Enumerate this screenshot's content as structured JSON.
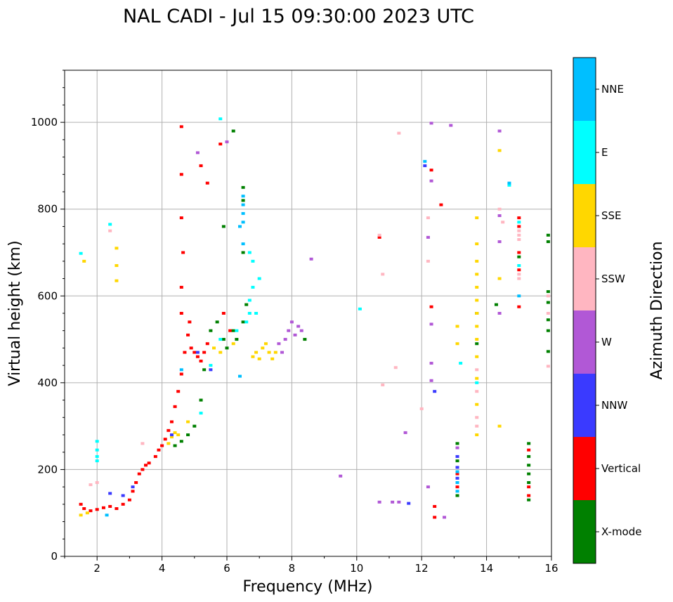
{
  "chart_data": {
    "type": "scatter",
    "title": "NAL CADI - Jul 15 09:30:00 2023 UTC",
    "xlabel": "Frequency (MHz)",
    "ylabel": "Virtual height (km)",
    "xlim": [
      1,
      16
    ],
    "ylim": [
      0,
      1120
    ],
    "xticks": [
      2,
      4,
      6,
      8,
      10,
      12,
      14,
      16
    ],
    "yticks": [
      0,
      200,
      400,
      600,
      800,
      1000
    ],
    "grid": true,
    "colorbar": {
      "label": "Azimuth Direction",
      "categories": [
        {
          "name": "X-mode",
          "color": "#008000"
        },
        {
          "name": "Vertical",
          "color": "#ff0000"
        },
        {
          "name": "NNW",
          "color": "#3a3aff"
        },
        {
          "name": "W",
          "color": "#b158d6"
        },
        {
          "name": "SSW",
          "color": "#ffb6c1"
        },
        {
          "name": "SSE",
          "color": "#ffd700"
        },
        {
          "name": "E",
          "color": "#00ffff"
        },
        {
          "name": "NNE",
          "color": "#00bfff"
        }
      ]
    },
    "series": [
      {
        "name": "Vertical",
        "points": [
          [
            1.5,
            120
          ],
          [
            1.6,
            110
          ],
          [
            1.8,
            105
          ],
          [
            2.0,
            108
          ],
          [
            2.2,
            112
          ],
          [
            2.4,
            115
          ],
          [
            2.6,
            110
          ],
          [
            2.8,
            120
          ],
          [
            3.0,
            130
          ],
          [
            3.1,
            150
          ],
          [
            3.2,
            170
          ],
          [
            3.3,
            190
          ],
          [
            3.4,
            200
          ],
          [
            3.5,
            210
          ],
          [
            3.6,
            215
          ],
          [
            3.8,
            230
          ],
          [
            3.9,
            245
          ],
          [
            4.0,
            255
          ],
          [
            4.1,
            270
          ],
          [
            4.2,
            290
          ],
          [
            4.3,
            310
          ],
          [
            4.4,
            345
          ],
          [
            4.5,
            380
          ],
          [
            4.6,
            420
          ],
          [
            4.7,
            470
          ],
          [
            4.8,
            510
          ],
          [
            4.85,
            540
          ],
          [
            4.9,
            480
          ],
          [
            5.0,
            470
          ],
          [
            5.1,
            460
          ],
          [
            5.2,
            450
          ],
          [
            5.3,
            470
          ],
          [
            5.4,
            490
          ],
          [
            4.6,
            560
          ],
          [
            4.6,
            620
          ],
          [
            4.65,
            700
          ],
          [
            4.6,
            780
          ],
          [
            4.6,
            880
          ],
          [
            4.6,
            990
          ],
          [
            5.8,
            950
          ],
          [
            5.2,
            900
          ],
          [
            5.4,
            860
          ],
          [
            6.1,
            520
          ],
          [
            5.9,
            560
          ],
          [
            12.3,
            890
          ],
          [
            12.6,
            810
          ],
          [
            10.7,
            735
          ],
          [
            12.3,
            575
          ],
          [
            12.4,
            115
          ],
          [
            12.4,
            90
          ],
          [
            13.1,
            190
          ],
          [
            13.1,
            160
          ],
          [
            15.0,
            780
          ],
          [
            15.0,
            760
          ],
          [
            15.0,
            700
          ],
          [
            15.0,
            660
          ],
          [
            15.0,
            575
          ],
          [
            15.3,
            245
          ],
          [
            15.3,
            160
          ],
          [
            15.3,
            140
          ]
        ]
      },
      {
        "name": "X-mode",
        "points": [
          [
            4.4,
            255
          ],
          [
            4.6,
            265
          ],
          [
            4.8,
            280
          ],
          [
            5.0,
            300
          ],
          [
            5.2,
            360
          ],
          [
            5.3,
            430
          ],
          [
            5.5,
            520
          ],
          [
            5.7,
            540
          ],
          [
            5.9,
            500
          ],
          [
            6.0,
            480
          ],
          [
            6.2,
            520
          ],
          [
            6.3,
            500
          ],
          [
            6.5,
            540
          ],
          [
            6.6,
            580
          ],
          [
            6.5,
            700
          ],
          [
            6.5,
            820
          ],
          [
            6.5,
            850
          ],
          [
            6.2,
            980
          ],
          [
            5.9,
            760
          ],
          [
            8.4,
            500
          ],
          [
            13.1,
            260
          ],
          [
            13.1,
            220
          ],
          [
            13.1,
            140
          ],
          [
            15.3,
            260
          ],
          [
            15.3,
            230
          ],
          [
            15.3,
            210
          ],
          [
            15.3,
            190
          ],
          [
            15.3,
            170
          ],
          [
            15.3,
            130
          ],
          [
            15.9,
            740
          ],
          [
            15.9,
            725
          ],
          [
            15.9,
            610
          ],
          [
            15.9,
            585
          ],
          [
            15.9,
            545
          ],
          [
            15.9,
            520
          ],
          [
            15.9,
            472
          ],
          [
            13.7,
            560
          ],
          [
            13.7,
            490
          ],
          [
            14.3,
            580
          ],
          [
            15.0,
            690
          ]
        ]
      },
      {
        "name": "SSE",
        "points": [
          [
            1.5,
            95
          ],
          [
            1.7,
            100
          ],
          [
            1.6,
            680
          ],
          [
            2.6,
            710
          ],
          [
            2.6,
            670
          ],
          [
            2.6,
            635
          ],
          [
            4.2,
            260
          ],
          [
            4.3,
            275
          ],
          [
            4.4,
            285
          ],
          [
            4.5,
            280
          ],
          [
            4.8,
            310
          ],
          [
            5.6,
            480
          ],
          [
            5.8,
            470
          ],
          [
            6.2,
            490
          ],
          [
            6.8,
            460
          ],
          [
            6.9,
            470
          ],
          [
            7.0,
            455
          ],
          [
            7.1,
            480
          ],
          [
            7.2,
            490
          ],
          [
            7.3,
            470
          ],
          [
            7.4,
            455
          ],
          [
            7.5,
            470
          ],
          [
            13.7,
            780
          ],
          [
            13.7,
            720
          ],
          [
            13.7,
            680
          ],
          [
            13.7,
            650
          ],
          [
            13.7,
            620
          ],
          [
            13.7,
            590
          ],
          [
            13.7,
            560
          ],
          [
            13.7,
            530
          ],
          [
            13.7,
            500
          ],
          [
            13.7,
            460
          ],
          [
            13.7,
            410
          ],
          [
            13.7,
            350
          ],
          [
            13.7,
            280
          ],
          [
            14.4,
            935
          ],
          [
            14.4,
            640
          ],
          [
            14.4,
            300
          ],
          [
            13.1,
            530
          ],
          [
            13.1,
            490
          ]
        ]
      },
      {
        "name": "W",
        "points": [
          [
            7.6,
            490
          ],
          [
            7.8,
            500
          ],
          [
            7.9,
            520
          ],
          [
            8.0,
            540
          ],
          [
            8.1,
            510
          ],
          [
            8.2,
            530
          ],
          [
            8.3,
            520
          ],
          [
            7.7,
            470
          ],
          [
            8.6,
            685
          ],
          [
            9.5,
            185
          ],
          [
            10.7,
            125
          ],
          [
            11.1,
            125
          ],
          [
            11.3,
            125
          ],
          [
            11.5,
            285
          ],
          [
            12.2,
            735
          ],
          [
            12.3,
            535
          ],
          [
            12.3,
            445
          ],
          [
            12.3,
            405
          ],
          [
            12.2,
            160
          ],
          [
            12.7,
            90
          ],
          [
            12.3,
            998
          ],
          [
            12.3,
            865
          ],
          [
            12.9,
            993
          ],
          [
            14.4,
            980
          ],
          [
            14.4,
            785
          ],
          [
            14.4,
            725
          ],
          [
            14.4,
            560
          ],
          [
            13.1,
            250
          ],
          [
            5.1,
            930
          ],
          [
            6.0,
            955
          ]
        ]
      },
      {
        "name": "SSW",
        "points": [
          [
            1.8,
            165
          ],
          [
            2.4,
            750
          ],
          [
            2.0,
            170
          ],
          [
            3.4,
            260
          ],
          [
            11.3,
            975
          ],
          [
            10.7,
            740
          ],
          [
            10.8,
            650
          ],
          [
            10.8,
            395
          ],
          [
            11.2,
            435
          ],
          [
            12.2,
            780
          ],
          [
            12.2,
            680
          ],
          [
            12.0,
            340
          ],
          [
            14.4,
            800
          ],
          [
            14.5,
            770
          ],
          [
            15.0,
            750
          ],
          [
            15.0,
            740
          ],
          [
            15.0,
            730
          ],
          [
            15.0,
            650
          ],
          [
            15.0,
            640
          ],
          [
            15.9,
            600
          ],
          [
            15.9,
            560
          ],
          [
            15.9,
            438
          ],
          [
            13.7,
            320
          ],
          [
            13.7,
            300
          ],
          [
            13.7,
            380
          ],
          [
            13.7,
            430
          ]
        ]
      },
      {
        "name": "NNW",
        "points": [
          [
            2.4,
            145
          ],
          [
            2.8,
            140
          ],
          [
            3.1,
            160
          ],
          [
            4.3,
            280
          ],
          [
            5.1,
            470
          ],
          [
            12.1,
            900
          ],
          [
            12.4,
            380
          ],
          [
            11.6,
            122
          ],
          [
            13.1,
            180
          ],
          [
            13.1,
            205
          ],
          [
            13.1,
            230
          ],
          [
            5.5,
            430
          ]
        ]
      },
      {
        "name": "E",
        "points": [
          [
            2.4,
            765
          ],
          [
            2.0,
            265
          ],
          [
            2.0,
            245
          ],
          [
            2.0,
            230
          ],
          [
            2.0,
            220
          ],
          [
            5.2,
            330
          ],
          [
            5.5,
            440
          ],
          [
            5.8,
            500
          ],
          [
            6.3,
            520
          ],
          [
            6.6,
            540
          ],
          [
            6.7,
            560
          ],
          [
            6.7,
            590
          ],
          [
            6.8,
            620
          ],
          [
            6.8,
            680
          ],
          [
            6.7,
            700
          ],
          [
            7.0,
            640
          ],
          [
            6.9,
            560
          ],
          [
            10.1,
            570
          ],
          [
            13.2,
            445
          ],
          [
            13.7,
            400
          ],
          [
            14.7,
            855
          ],
          [
            15.0,
            670
          ],
          [
            15.0,
            770
          ],
          [
            5.8,
            1008
          ],
          [
            1.5,
            698
          ]
        ]
      },
      {
        "name": "NNE",
        "points": [
          [
            6.5,
            830
          ],
          [
            6.5,
            810
          ],
          [
            6.5,
            790
          ],
          [
            6.5,
            770
          ],
          [
            6.5,
            720
          ],
          [
            6.4,
            760
          ],
          [
            12.1,
            910
          ],
          [
            13.1,
            195
          ],
          [
            13.1,
            170
          ],
          [
            13.1,
            150
          ],
          [
            14.7,
            860
          ],
          [
            15.0,
            600
          ],
          [
            6.4,
            415
          ],
          [
            2.3,
            95
          ],
          [
            4.6,
            430
          ]
        ]
      }
    ]
  }
}
